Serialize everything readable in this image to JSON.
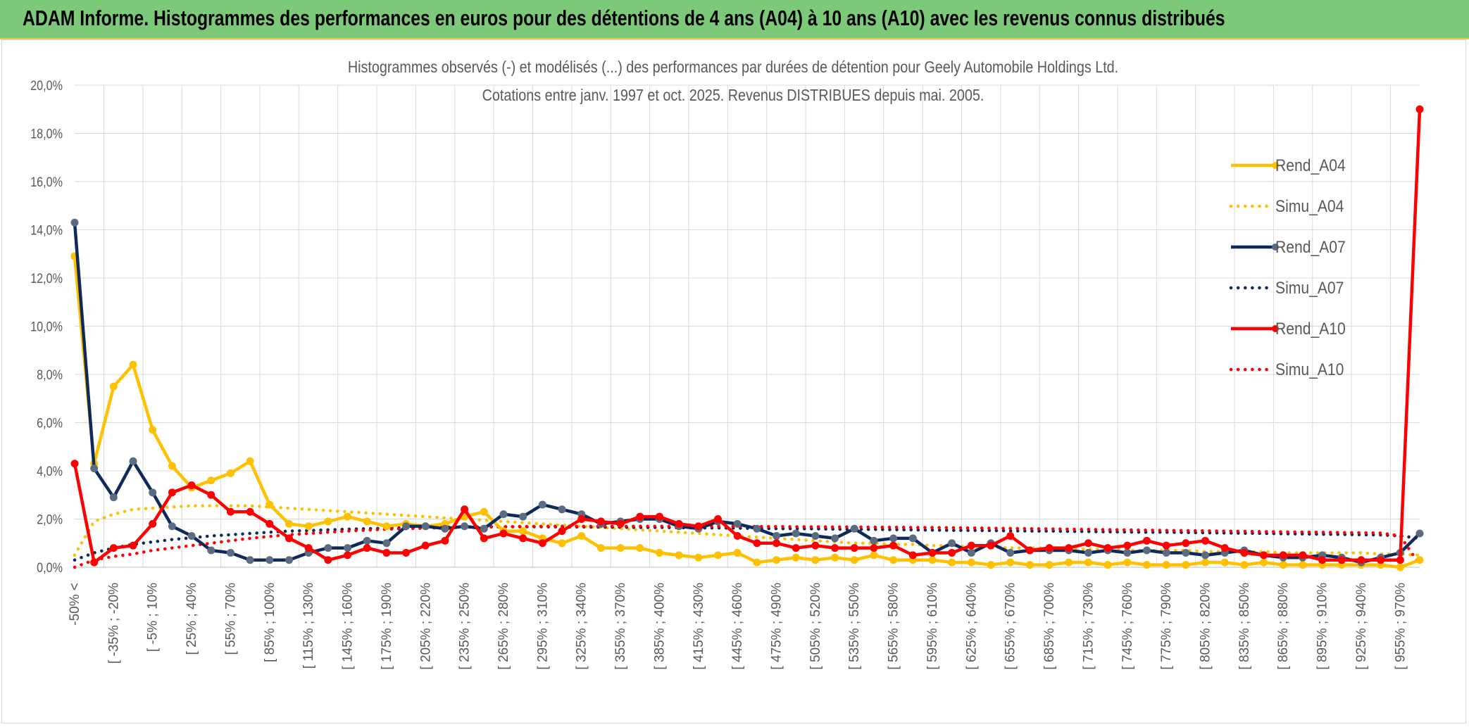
{
  "banner": {
    "title": "ADAM Informe. Histogrammes des performances en euros pour des détentions de 4 ans (A04) à 10 ans (A10) avec les revenus connus distribués"
  },
  "colors": {
    "banner_bg": "#7dc97a",
    "a04": "#ffc000",
    "a07": "#0e2a5c",
    "a07_marker": "#5b6b80",
    "a10": "#ff0000",
    "grid": "#d9d9d9",
    "text": "#595959"
  },
  "chart_data": {
    "type": "line",
    "title": "Histogrammes observés (-) et modélisés (...) des performances par durées de détention pour Geely Automobile Holdings Ltd.",
    "subtitle": "Cotations entre janv. 1997 et oct. 2025. Revenus DISTRIBUES depuis mai. 2005.",
    "xlabel": "",
    "ylabel": "",
    "ylim": [
      0,
      20
    ],
    "yticks": [
      "0,0%",
      "2,0%",
      "4,0%",
      "6,0%",
      "8,0%",
      "10,0%",
      "12,0%",
      "14,0%",
      "16,0%",
      "18,0%",
      "20,0%"
    ],
    "legend_position": "right",
    "x_tick_labels": [
      "-50% <",
      "[ -35% ; -20%",
      "[ -5% ; 10%",
      "[ 25% ; 40%",
      "[ 55% ; 70%",
      "[ 85% ; 100%",
      "[ 115% ; 130%",
      "[ 145% ; 160%",
      "[ 175% ; 190%",
      "[ 205% ; 220%",
      "[ 235% ; 250%",
      "[ 265% ; 280%",
      "[ 295% ; 310%",
      "[ 325% ; 340%",
      "[ 355% ; 370%",
      "[ 385% ; 400%",
      "[ 415% ; 430%",
      "[ 445% ; 460%",
      "[ 475% ; 490%",
      "[ 505% ; 520%",
      "[ 535% ; 550%",
      "[ 565% ; 580%",
      "[ 595% ; 610%",
      "[ 625% ; 640%",
      "[ 655% ; 670%",
      "[ 685% ; 700%",
      "[ 715% ; 730%",
      "[ 745% ; 760%",
      "[ 775% ; 790%",
      "[ 805% ; 820%",
      "[ 835% ; 850%",
      "[ 865% ; 880%",
      "[ 895% ; 910%",
      "[ 925% ; 940%",
      "[ 955% ; 970%"
    ],
    "n_points": 70,
    "series": [
      {
        "name": "Rend_A04",
        "style": "solid",
        "marker": true,
        "color": "#ffc000",
        "values": [
          12.9,
          4.3,
          7.5,
          8.4,
          5.7,
          4.2,
          3.3,
          3.6,
          3.9,
          4.4,
          2.6,
          1.8,
          1.7,
          1.9,
          2.1,
          1.9,
          1.7,
          1.8,
          1.7,
          1.8,
          2.1,
          2.3,
          1.5,
          1.5,
          1.2,
          1.0,
          1.3,
          0.8,
          0.8,
          0.8,
          0.6,
          0.5,
          0.4,
          0.5,
          0.6,
          0.2,
          0.3,
          0.4,
          0.3,
          0.4,
          0.3,
          0.5,
          0.3,
          0.3,
          0.3,
          0.2,
          0.2,
          0.1,
          0.2,
          0.1,
          0.1,
          0.2,
          0.2,
          0.1,
          0.2,
          0.1,
          0.1,
          0.1,
          0.2,
          0.2,
          0.1,
          0.2,
          0.1,
          0.1,
          0.1,
          0.1,
          0.1,
          0.1,
          0.0,
          0.3
        ]
      },
      {
        "name": "Simu_A04",
        "style": "dotted",
        "marker": false,
        "color": "#ffc000",
        "values": [
          0.5,
          1.9,
          2.2,
          2.4,
          2.45,
          2.5,
          2.55,
          2.55,
          2.55,
          2.55,
          2.5,
          2.45,
          2.4,
          2.35,
          2.3,
          2.25,
          2.2,
          2.15,
          2.1,
          2.05,
          2.0,
          1.95,
          1.9,
          1.85,
          1.8,
          1.75,
          1.7,
          1.65,
          1.6,
          1.55,
          1.5,
          1.45,
          1.4,
          1.35,
          1.3,
          1.25,
          1.2,
          1.15,
          1.1,
          1.05,
          1.0,
          1.0,
          0.95,
          0.95,
          0.9,
          0.9,
          0.85,
          0.85,
          0.8,
          0.8,
          0.8,
          0.75,
          0.75,
          0.75,
          0.7,
          0.7,
          0.7,
          0.7,
          0.65,
          0.65,
          0.65,
          0.65,
          0.6,
          0.6,
          0.6,
          0.6,
          0.6,
          0.55,
          0.55,
          0.5
        ]
      },
      {
        "name": "Rend_A07",
        "style": "solid",
        "marker": true,
        "color": "#0e2a5c",
        "values": [
          14.3,
          4.1,
          2.9,
          4.4,
          3.1,
          1.7,
          1.3,
          0.7,
          0.6,
          0.3,
          0.3,
          0.3,
          0.6,
          0.8,
          0.8,
          1.1,
          1.0,
          1.7,
          1.7,
          1.6,
          1.7,
          1.6,
          2.2,
          2.1,
          2.6,
          2.4,
          2.2,
          1.8,
          1.9,
          2.0,
          2.0,
          1.7,
          1.6,
          1.9,
          1.8,
          1.6,
          1.3,
          1.4,
          1.3,
          1.2,
          1.6,
          1.1,
          1.2,
          1.2,
          0.6,
          1.0,
          0.6,
          1.0,
          0.6,
          0.7,
          0.7,
          0.7,
          0.6,
          0.7,
          0.6,
          0.7,
          0.6,
          0.6,
          0.5,
          0.6,
          0.7,
          0.5,
          0.4,
          0.4,
          0.5,
          0.4,
          0.2,
          0.4,
          0.6,
          1.4
        ]
      },
      {
        "name": "Simu_A07",
        "style": "dotted",
        "marker": false,
        "color": "#0e2a5c",
        "values": [
          0.3,
          0.6,
          0.8,
          0.95,
          1.05,
          1.15,
          1.22,
          1.3,
          1.35,
          1.4,
          1.45,
          1.5,
          1.52,
          1.55,
          1.58,
          1.6,
          1.62,
          1.64,
          1.65,
          1.66,
          1.67,
          1.68,
          1.68,
          1.68,
          1.68,
          1.67,
          1.67,
          1.66,
          1.66,
          1.65,
          1.65,
          1.64,
          1.63,
          1.63,
          1.62,
          1.61,
          1.6,
          1.6,
          1.59,
          1.58,
          1.57,
          1.57,
          1.56,
          1.55,
          1.54,
          1.53,
          1.53,
          1.52,
          1.51,
          1.5,
          1.5,
          1.49,
          1.48,
          1.47,
          1.46,
          1.45,
          1.45,
          1.44,
          1.43,
          1.42,
          1.41,
          1.4,
          1.39,
          1.38,
          1.37,
          1.36,
          1.35,
          1.34,
          1.3,
          1.2
        ]
      },
      {
        "name": "Rend_A10",
        "style": "solid",
        "marker": true,
        "color": "#ff0000",
        "values": [
          4.3,
          0.2,
          0.8,
          0.9,
          1.8,
          3.1,
          3.4,
          3.0,
          2.3,
          2.3,
          1.8,
          1.2,
          0.8,
          0.3,
          0.5,
          0.8,
          0.6,
          0.6,
          0.9,
          1.1,
          2.4,
          1.2,
          1.4,
          1.2,
          1.0,
          1.5,
          2.0,
          1.9,
          1.8,
          2.1,
          2.1,
          1.8,
          1.7,
          2.0,
          1.3,
          1.0,
          1.0,
          0.8,
          0.9,
          0.8,
          0.8,
          0.8,
          0.9,
          0.5,
          0.6,
          0.6,
          0.9,
          0.9,
          1.3,
          0.7,
          0.8,
          0.8,
          1.0,
          0.8,
          0.9,
          1.1,
          0.9,
          1.0,
          1.1,
          0.8,
          0.6,
          0.5,
          0.5,
          0.5,
          0.3,
          0.3,
          0.3,
          0.3,
          0.3,
          19.0
        ]
      },
      {
        "name": "Simu_A10",
        "style": "dotted",
        "marker": false,
        "color": "#ff0000",
        "values": [
          0.0,
          0.3,
          0.45,
          0.55,
          0.7,
          0.8,
          0.9,
          1.0,
          1.1,
          1.2,
          1.28,
          1.35,
          1.4,
          1.45,
          1.5,
          1.54,
          1.58,
          1.6,
          1.62,
          1.64,
          1.66,
          1.67,
          1.68,
          1.69,
          1.7,
          1.7,
          1.7,
          1.7,
          1.7,
          1.7,
          1.7,
          1.7,
          1.7,
          1.7,
          1.7,
          1.69,
          1.69,
          1.68,
          1.68,
          1.67,
          1.67,
          1.66,
          1.66,
          1.65,
          1.65,
          1.64,
          1.63,
          1.62,
          1.61,
          1.6,
          1.59,
          1.58,
          1.57,
          1.56,
          1.55,
          1.54,
          1.53,
          1.52,
          1.51,
          1.5,
          1.49,
          1.48,
          1.47,
          1.46,
          1.45,
          1.44,
          1.43,
          1.42,
          1.3,
          0.1
        ]
      }
    ]
  }
}
